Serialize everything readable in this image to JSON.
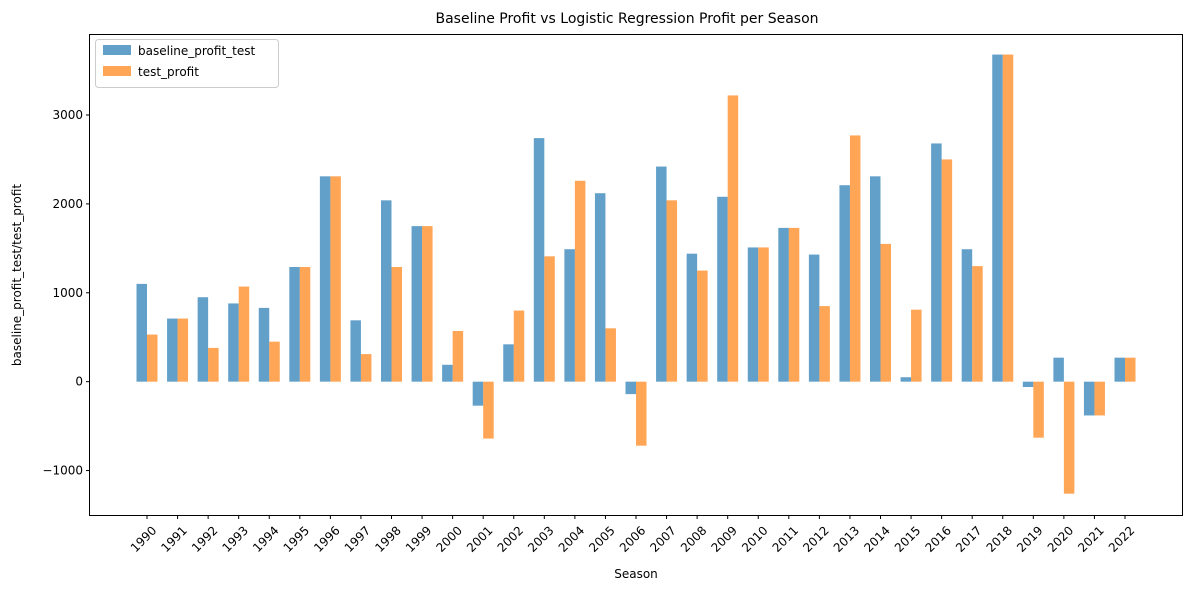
{
  "chart_data": {
    "type": "bar",
    "title": "Baseline Profit vs Logistic Regression Profit per Season",
    "xlabel": "Season",
    "ylabel": "baseline_profit_test/test_profit",
    "categories": [
      "1990",
      "1991",
      "1992",
      "1993",
      "1994",
      "1995",
      "1996",
      "1997",
      "1998",
      "1999",
      "2000",
      "2001",
      "2002",
      "2003",
      "2004",
      "2005",
      "2006",
      "2007",
      "2008",
      "2009",
      "2010",
      "2011",
      "2012",
      "2013",
      "2014",
      "2015",
      "2016",
      "2017",
      "2018",
      "2019",
      "2020",
      "2021",
      "2022"
    ],
    "series": [
      {
        "name": "baseline_profit_test",
        "color": "#1f77b4",
        "values": [
          1100,
          710,
          950,
          880,
          830,
          1290,
          2310,
          690,
          2040,
          1750,
          190,
          -270,
          420,
          2740,
          1490,
          2120,
          -140,
          2420,
          1440,
          2080,
          1510,
          1730,
          1430,
          2210,
          2310,
          50,
          2680,
          1490,
          3680,
          -60,
          270,
          -380,
          270
        ]
      },
      {
        "name": "test_profit",
        "color": "#ff7f0e",
        "values": [
          530,
          710,
          380,
          1070,
          450,
          1290,
          2310,
          310,
          1290,
          1750,
          570,
          -640,
          800,
          1410,
          2260,
          600,
          -720,
          2040,
          1250,
          3220,
          1510,
          1730,
          850,
          2770,
          1550,
          810,
          2500,
          1300,
          3680,
          -630,
          -1260,
          -380,
          270
        ]
      }
    ],
    "ylim": [
      -1500,
      3900
    ],
    "yticks": [
      -1000,
      0,
      1000,
      2000,
      3000
    ],
    "ytick_labels": [
      "−1000",
      "0",
      "1000",
      "2000",
      "3000"
    ],
    "bar_opacity": 0.7,
    "grid": false,
    "legend_position": "upper-left"
  }
}
